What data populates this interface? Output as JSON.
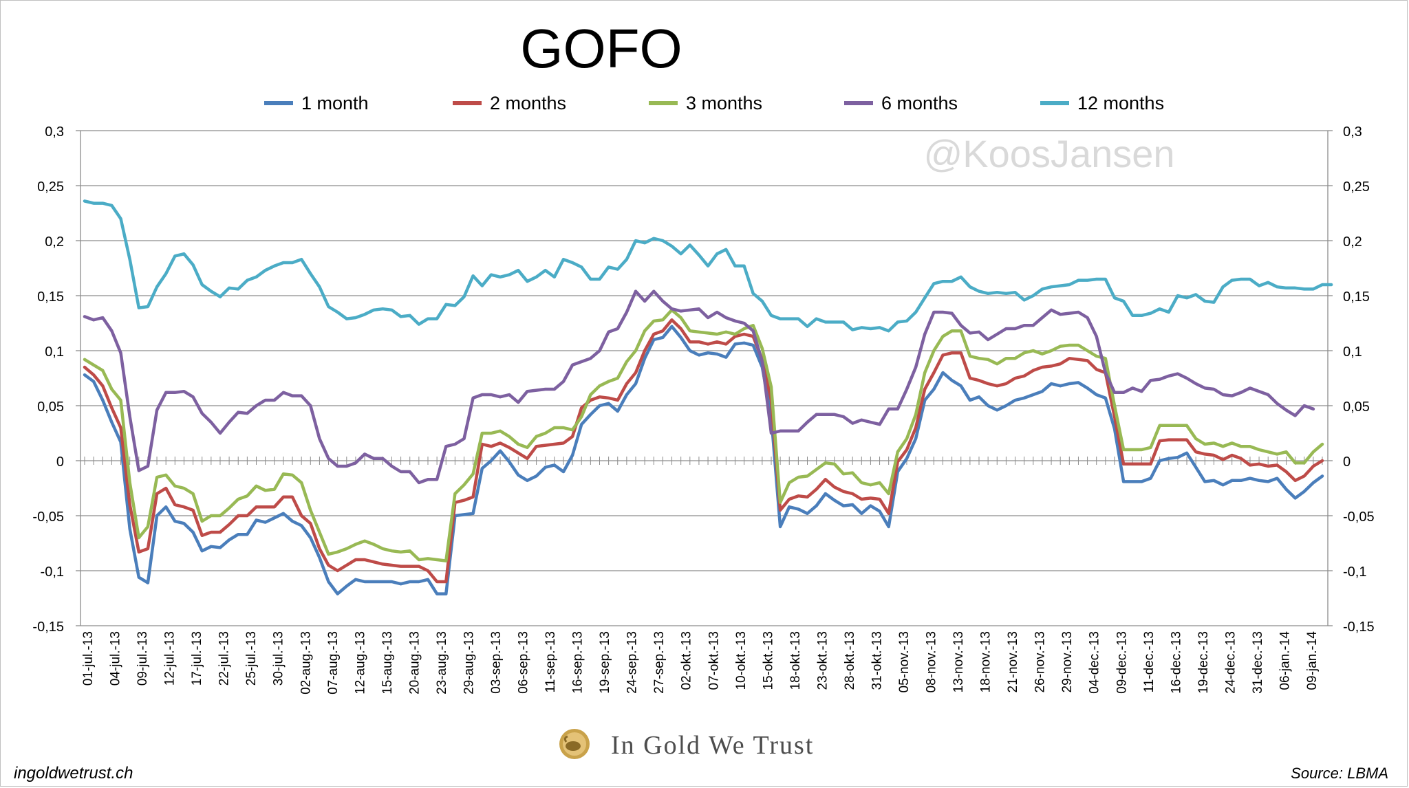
{
  "chart_data": {
    "type": "line",
    "title": "GOFO",
    "watermark": "@KoosJansen",
    "xlabel": "",
    "ylabel": "",
    "ylim": [
      -0.15,
      0.3
    ],
    "yticks": [
      "0,3",
      "0,25",
      "0,2",
      "0,15",
      "0,1",
      "0,05",
      "0",
      "-0,05",
      "-0,1",
      "-0,15"
    ],
    "ytick_values": [
      0.3,
      0.25,
      0.2,
      0.15,
      0.1,
      0.05,
      0,
      -0.05,
      -0.1,
      -0.15
    ],
    "grid": true,
    "legend_position": "top",
    "secondary_y_axis": true,
    "x_tick_labels": [
      "01-jul.-13",
      "04-jul.-13",
      "09-jul.-13",
      "12-jul.-13",
      "17-jul.-13",
      "22-jul.-13",
      "25-jul.-13",
      "30-jul.-13",
      "02-aug.-13",
      "07-aug.-13",
      "12-aug.-13",
      "15-aug.-13",
      "20-aug.-13",
      "23-aug.-13",
      "29-aug.-13",
      "03-sep.-13",
      "06-sep.-13",
      "11-sep.-13",
      "16-sep.-13",
      "19-sep.-13",
      "24-sep.-13",
      "27-sep.-13",
      "02-okt.-13",
      "07-okt.-13",
      "10-okt.-13",
      "15-okt.-13",
      "18-okt.-13",
      "23-okt.-13",
      "28-okt.-13",
      "31-okt.-13",
      "05-nov.-13",
      "08-nov.-13",
      "13-nov.-13",
      "18-nov.-13",
      "21-nov.-13",
      "26-nov.-13",
      "29-nov.-13",
      "04-dec.-13",
      "09-dec.-13",
      "11-dec.-13",
      "16-dec.-13",
      "19-dec.-13",
      "24-dec.-13",
      "31-dec.-13",
      "06-jan.-14",
      "09-jan.-14"
    ],
    "series": [
      {
        "name": "1 month",
        "color": "#4a7ebb",
        "values": [
          0.078,
          0.072,
          0.055,
          0.035,
          0.017,
          -0.062,
          -0.106,
          -0.111,
          -0.05,
          -0.042,
          -0.055,
          -0.057,
          -0.065,
          -0.082,
          -0.078,
          -0.079,
          -0.072,
          -0.067,
          -0.067,
          -0.054,
          -0.056,
          -0.052,
          -0.048,
          -0.055,
          -0.059,
          -0.07,
          -0.088,
          -0.11,
          -0.121,
          -0.114,
          -0.108,
          -0.11,
          -0.11,
          -0.11,
          -0.11,
          -0.112,
          -0.11,
          -0.11,
          -0.108,
          -0.121,
          -0.121,
          -0.05,
          -0.049,
          -0.048,
          -0.007,
          0,
          0.009,
          -0.001,
          -0.013,
          -0.018,
          -0.014,
          -0.006,
          -0.004,
          -0.01,
          0.005,
          0.033,
          0.042,
          0.05,
          0.052,
          0.045,
          0.06,
          0.07,
          0.093,
          0.11,
          0.112,
          0.122,
          0.112,
          0.1,
          0.096,
          0.098,
          0.097,
          0.094,
          0.106,
          0.107,
          0.105,
          0.085,
          0.04,
          -0.06,
          -0.042,
          -0.044,
          -0.048,
          -0.041,
          -0.03,
          -0.036,
          -0.041,
          -0.04,
          -0.048,
          -0.041,
          -0.046,
          -0.06,
          -0.01,
          0.002,
          0.02,
          0.055,
          0.065,
          0.08,
          0.073,
          0.068,
          0.055,
          0.058,
          0.05,
          0.046,
          0.05,
          0.055,
          0.057,
          0.06,
          0.063,
          0.07,
          0.068,
          0.07,
          0.071,
          0.066,
          0.06,
          0.057,
          0.029,
          -0.019,
          -0.019,
          -0.019,
          -0.016,
          0,
          0.002,
          0.003,
          0.007,
          -0.006,
          -0.019,
          -0.018,
          -0.022,
          -0.018,
          -0.018,
          -0.016,
          -0.018,
          -0.019,
          -0.016,
          -0.026,
          -0.034,
          -0.028,
          -0.02,
          -0.014
        ]
      },
      {
        "name": "2 months",
        "color": "#be4b48",
        "values": [
          0.085,
          0.078,
          0.068,
          0.048,
          0.03,
          -0.04,
          -0.083,
          -0.08,
          -0.03,
          -0.025,
          -0.04,
          -0.042,
          -0.045,
          -0.068,
          -0.065,
          -0.065,
          -0.058,
          -0.05,
          -0.05,
          -0.042,
          -0.042,
          -0.042,
          -0.033,
          -0.033,
          -0.05,
          -0.057,
          -0.08,
          -0.095,
          -0.1,
          -0.095,
          -0.09,
          -0.09,
          -0.092,
          -0.094,
          -0.095,
          -0.096,
          -0.096,
          -0.096,
          -0.1,
          -0.11,
          -0.11,
          -0.038,
          -0.036,
          -0.033,
          0.015,
          0.013,
          0.016,
          0.012,
          0.007,
          0.002,
          0.013,
          0.014,
          0.015,
          0.016,
          0.022,
          0.048,
          0.055,
          0.058,
          0.057,
          0.055,
          0.07,
          0.08,
          0.1,
          0.115,
          0.118,
          0.128,
          0.12,
          0.108,
          0.108,
          0.106,
          0.108,
          0.106,
          0.113,
          0.115,
          0.113,
          0.092,
          0.055,
          -0.045,
          -0.035,
          -0.032,
          -0.033,
          -0.026,
          -0.017,
          -0.024,
          -0.028,
          -0.03,
          -0.035,
          -0.034,
          -0.035,
          -0.048,
          -0.001,
          0.01,
          0.03,
          0.065,
          0.08,
          0.096,
          0.098,
          0.098,
          0.075,
          0.073,
          0.07,
          0.068,
          0.07,
          0.075,
          0.077,
          0.082,
          0.085,
          0.086,
          0.088,
          0.093,
          0.092,
          0.091,
          0.083,
          0.08,
          0.04,
          -0.003,
          -0.003,
          -0.003,
          -0.003,
          0.018,
          0.019,
          0.019,
          0.019,
          0.008,
          0.006,
          0.005,
          0.001,
          0.005,
          0.002,
          -0.004,
          -0.003,
          -0.005,
          -0.004,
          -0.01,
          -0.018,
          -0.014,
          -0.005,
          0
        ]
      },
      {
        "name": "3 months",
        "color": "#98b954",
        "values": [
          0.092,
          0.087,
          0.082,
          0.065,
          0.055,
          -0.02,
          -0.07,
          -0.06,
          -0.015,
          -0.013,
          -0.023,
          -0.025,
          -0.03,
          -0.055,
          -0.05,
          -0.05,
          -0.043,
          -0.035,
          -0.032,
          -0.023,
          -0.027,
          -0.026,
          -0.012,
          -0.013,
          -0.02,
          -0.045,
          -0.065,
          -0.085,
          -0.083,
          -0.08,
          -0.076,
          -0.073,
          -0.076,
          -0.08,
          -0.082,
          -0.083,
          -0.082,
          -0.09,
          -0.089,
          -0.09,
          -0.091,
          -0.03,
          -0.022,
          -0.012,
          0.025,
          0.025,
          0.027,
          0.022,
          0.015,
          0.012,
          0.022,
          0.025,
          0.03,
          0.03,
          0.028,
          0.04,
          0.06,
          0.068,
          0.072,
          0.075,
          0.09,
          0.1,
          0.118,
          0.127,
          0.128,
          0.137,
          0.13,
          0.118,
          0.117,
          0.116,
          0.115,
          0.117,
          0.115,
          0.12,
          0.123,
          0.102,
          0.067,
          -0.038,
          -0.02,
          -0.015,
          -0.014,
          -0.008,
          -0.002,
          -0.003,
          -0.012,
          -0.011,
          -0.02,
          -0.022,
          -0.02,
          -0.03,
          0.008,
          0.02,
          0.042,
          0.08,
          0.1,
          0.113,
          0.118,
          0.118,
          0.095,
          0.093,
          0.092,
          0.088,
          0.093,
          0.093,
          0.098,
          0.1,
          0.097,
          0.1,
          0.104,
          0.105,
          0.105,
          0.1,
          0.095,
          0.093,
          0.05,
          0.01,
          0.01,
          0.01,
          0.012,
          0.032,
          0.032,
          0.032,
          0.032,
          0.02,
          0.015,
          0.016,
          0.013,
          0.016,
          0.013,
          0.013,
          0.01,
          0.008,
          0.006,
          0.008,
          -0.002,
          -0.002,
          0.008,
          0.015
        ]
      },
      {
        "name": "6 months",
        "color": "#7d60a0",
        "values": [
          0.131,
          0.128,
          0.13,
          0.118,
          0.098,
          0.04,
          -0.009,
          -0.005,
          0.046,
          0.062,
          0.062,
          0.063,
          0.058,
          0.043,
          0.035,
          0.025,
          0.035,
          0.044,
          0.043,
          0.05,
          0.055,
          0.055,
          0.062,
          0.059,
          0.059,
          0.05,
          0.02,
          0.002,
          -0.005,
          -0.005,
          -0.002,
          0.006,
          0.002,
          0.002,
          -0.005,
          -0.01,
          -0.01,
          -0.02,
          -0.017,
          -0.017,
          0.013,
          0.015,
          0.02,
          0.057,
          0.06,
          0.06,
          0.058,
          0.06,
          0.053,
          0.063,
          0.064,
          0.065,
          0.065,
          0.072,
          0.087,
          0.09,
          0.093,
          0.1,
          0.117,
          0.12,
          0.135,
          0.154,
          0.145,
          0.154,
          0.145,
          0.138,
          0.136,
          0.137,
          0.138,
          0.13,
          0.135,
          0.13,
          0.127,
          0.125,
          0.118,
          0.09,
          0.025,
          0.027,
          0.027,
          0.027,
          0.035,
          0.042,
          0.042,
          0.042,
          0.04,
          0.034,
          0.037,
          0.035,
          0.033,
          0.047,
          0.047,
          0.065,
          0.085,
          0.115,
          0.135,
          0.135,
          0.134,
          0.123,
          0.116,
          0.117,
          0.11,
          0.115,
          0.12,
          0.12,
          0.123,
          0.123,
          0.13,
          0.137,
          0.133,
          0.134,
          0.135,
          0.13,
          0.113,
          0.08,
          0.062,
          0.062,
          0.066,
          0.063,
          0.073,
          0.074,
          0.077,
          0.079,
          0.075,
          0.07,
          0.066,
          0.065,
          0.06,
          0.059,
          0.062,
          0.066,
          0.063,
          0.06,
          0.052,
          0.046,
          0.041,
          0.05,
          0.047
        ]
      },
      {
        "name": "12 months",
        "color": "#4bacc6",
        "values": [
          0.236,
          0.234,
          0.234,
          0.232,
          0.22,
          0.183,
          0.139,
          0.14,
          0.158,
          0.17,
          0.186,
          0.188,
          0.178,
          0.16,
          0.154,
          0.149,
          0.157,
          0.156,
          0.164,
          0.167,
          0.173,
          0.177,
          0.18,
          0.18,
          0.183,
          0.17,
          0.158,
          0.14,
          0.135,
          0.129,
          0.13,
          0.133,
          0.137,
          0.138,
          0.137,
          0.131,
          0.132,
          0.124,
          0.129,
          0.129,
          0.142,
          0.141,
          0.149,
          0.168,
          0.159,
          0.169,
          0.167,
          0.169,
          0.173,
          0.163,
          0.167,
          0.173,
          0.167,
          0.183,
          0.18,
          0.176,
          0.165,
          0.165,
          0.176,
          0.174,
          0.183,
          0.2,
          0.198,
          0.202,
          0.2,
          0.195,
          0.188,
          0.196,
          0.187,
          0.177,
          0.188,
          0.192,
          0.177,
          0.177,
          0.152,
          0.145,
          0.132,
          0.129,
          0.129,
          0.129,
          0.122,
          0.129,
          0.126,
          0.126,
          0.126,
          0.119,
          0.121,
          0.12,
          0.121,
          0.118,
          0.126,
          0.127,
          0.135,
          0.148,
          0.161,
          0.163,
          0.163,
          0.167,
          0.158,
          0.154,
          0.152,
          0.153,
          0.152,
          0.153,
          0.146,
          0.15,
          0.156,
          0.158,
          0.159,
          0.16,
          0.164,
          0.164,
          0.165,
          0.165,
          0.148,
          0.145,
          0.132,
          0.132,
          0.134,
          0.138,
          0.135,
          0.15,
          0.148,
          0.151,
          0.145,
          0.144,
          0.158,
          0.164,
          0.165,
          0.165,
          0.159,
          0.162,
          0.158,
          0.157,
          0.157,
          0.156,
          0.156,
          0.16,
          0.16
        ]
      }
    ]
  },
  "footer": {
    "website": "ingoldwetrust.ch",
    "logo_text": "In Gold We Trust",
    "source": "Source: LBMA"
  }
}
